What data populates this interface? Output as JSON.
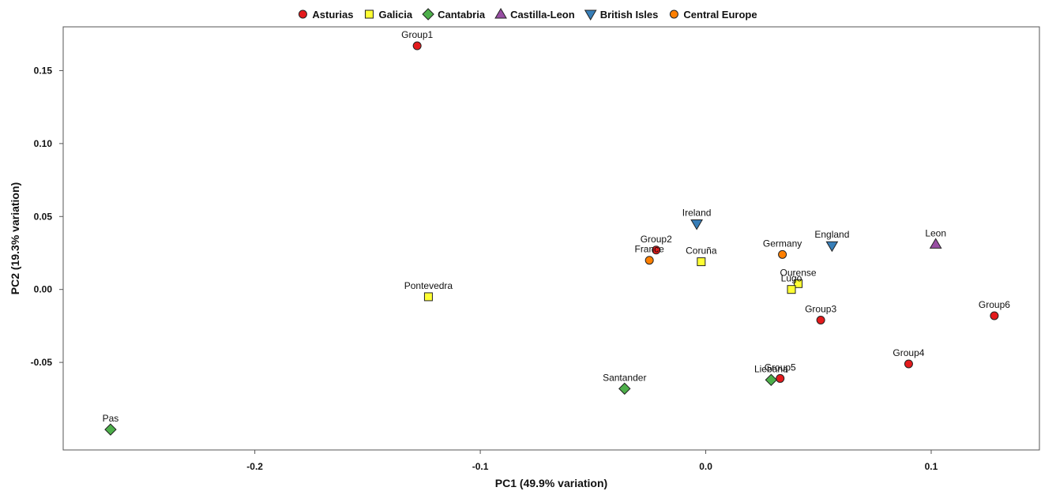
{
  "chart_data": {
    "type": "scatter",
    "title": "",
    "xlabel": "PC1 (49.9% variation)",
    "ylabel": "PC2 (19.3% variation)",
    "xlim": [
      -0.285,
      0.148
    ],
    "ylim": [
      -0.11,
      0.18
    ],
    "x_ticks": [
      {
        "value": -0.2,
        "label": "-0.2"
      },
      {
        "value": -0.1,
        "label": "-0.1"
      },
      {
        "value": 0.0,
        "label": "0.0"
      },
      {
        "value": 0.1,
        "label": "0.1"
      }
    ],
    "y_ticks": [
      {
        "value": 0.15,
        "label": "0.15"
      },
      {
        "value": 0.1,
        "label": "0.10"
      },
      {
        "value": 0.05,
        "label": "0.05"
      },
      {
        "value": 0.0,
        "label": "0.00"
      },
      {
        "value": -0.05,
        "label": "-0.05"
      }
    ],
    "grid": false,
    "legend_position": "top",
    "series": [
      {
        "name": "Asturias",
        "marker": "circle",
        "color": "#e41a1c",
        "points": [
          {
            "label": "Group1",
            "x": -0.128,
            "y": 0.167
          },
          {
            "label": "Group2",
            "x": -0.022,
            "y": 0.027
          },
          {
            "label": "Group3",
            "x": 0.051,
            "y": -0.021
          },
          {
            "label": "Group4",
            "x": 0.09,
            "y": -0.051
          },
          {
            "label": "Group5",
            "x": 0.033,
            "y": -0.061
          },
          {
            "label": "Group6",
            "x": 0.128,
            "y": -0.018
          }
        ]
      },
      {
        "name": "Galicia",
        "marker": "square",
        "color": "#ffff33",
        "points": [
          {
            "label": "Pontevedra",
            "x": -0.123,
            "y": -0.005
          },
          {
            "label": "Coruña",
            "x": -0.002,
            "y": 0.019
          },
          {
            "label": "Ourense",
            "x": 0.041,
            "y": 0.004
          },
          {
            "label": "Lugo",
            "x": 0.038,
            "y": 0.0
          }
        ]
      },
      {
        "name": "Cantabria",
        "marker": "diamond",
        "color": "#4daf4a",
        "points": [
          {
            "label": "Pas",
            "x": -0.264,
            "y": -0.096
          },
          {
            "label": "Santander",
            "x": -0.036,
            "y": -0.068
          },
          {
            "label": "Liebana",
            "x": 0.029,
            "y": -0.062
          }
        ]
      },
      {
        "name": "Castilla-Leon",
        "marker": "triangle-up",
        "color": "#984ea3",
        "points": [
          {
            "label": "Leon",
            "x": 0.102,
            "y": 0.031
          }
        ]
      },
      {
        "name": "British Isles",
        "marker": "triangle-down",
        "color": "#377eb8",
        "points": [
          {
            "label": "Ireland",
            "x": -0.004,
            "y": 0.045
          },
          {
            "label": "England",
            "x": 0.056,
            "y": 0.03
          }
        ]
      },
      {
        "name": "Central Europe",
        "marker": "circle",
        "color": "#ff7f00",
        "points": [
          {
            "label": "France",
            "x": -0.025,
            "y": 0.02
          },
          {
            "label": "Germany",
            "x": 0.034,
            "y": 0.024
          }
        ]
      }
    ]
  }
}
